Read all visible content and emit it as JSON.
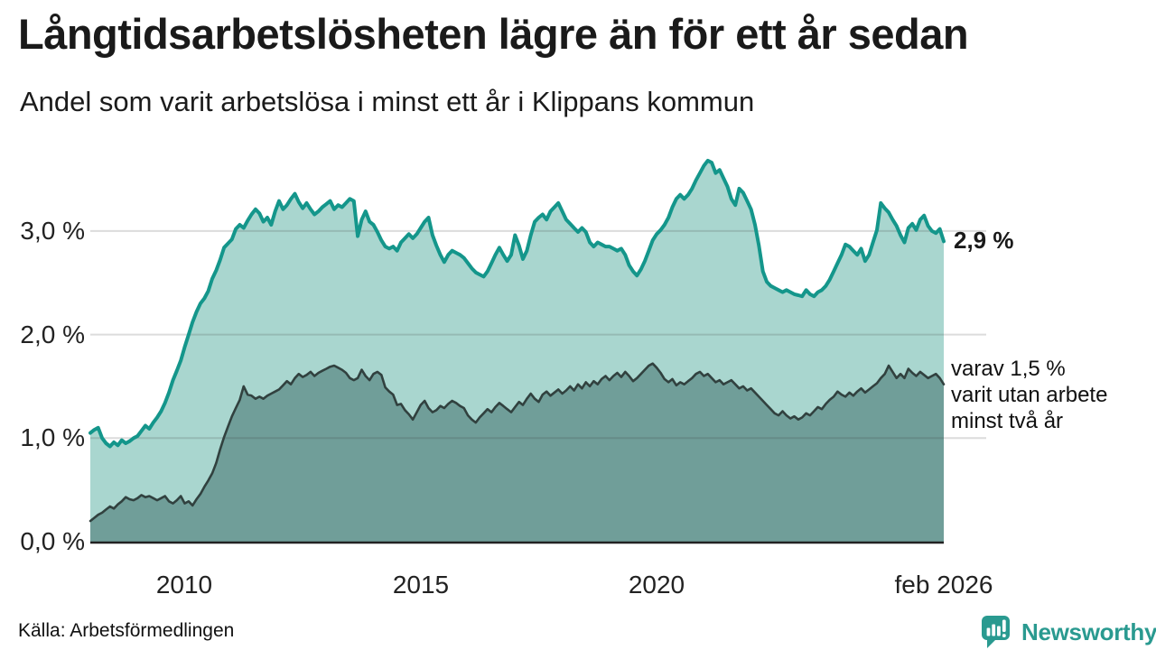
{
  "header": {
    "title": "Långtidsarbetslösheten lägre än för ett år sedan",
    "subtitle": "Andel som varit arbetslösa i minst ett år i Klippans kommun"
  },
  "annotations": {
    "end_value": "2,9 %",
    "varav": "varav 1,5 %\nvarit utan arbete\nminst två år"
  },
  "source": {
    "label": "Källa: Arbetsförmedlingen"
  },
  "logo": {
    "name": "Newsworthy",
    "color": "#2a9a90"
  },
  "chart_data": {
    "type": "area",
    "title": "Långtidsarbetslösheten lägre än för ett år sedan",
    "subtitle": "Andel som varit arbetslösa i minst ett år i Klippans kommun",
    "interval": "monthly",
    "x_start": "2008-01",
    "x_end": "2026-02",
    "ylim": [
      0,
      3.8
    ],
    "grid": true,
    "grid_color": "#3c3c3c",
    "axis_color": "#222222",
    "yticks": [
      {
        "value": 0,
        "label": "0,0 %"
      },
      {
        "value": 1,
        "label": "1,0 %"
      },
      {
        "value": 2,
        "label": "2,0 %"
      },
      {
        "value": 3,
        "label": "3,0 %"
      }
    ],
    "xticks": [
      {
        "label": "2010",
        "month_index": 24
      },
      {
        "label": "2015",
        "month_index": 84
      },
      {
        "label": "2020",
        "month_index": 144
      },
      {
        "label": "feb 2026",
        "month_index": 217
      }
    ],
    "series": [
      {
        "name": "Andel som varit arbetslösa minst ett år",
        "end_label": "2,9 %",
        "color": "#14968b",
        "fill": "#a9d6cf",
        "values": [
          1.05,
          1.08,
          1.1,
          1.0,
          0.95,
          0.92,
          0.96,
          0.93,
          0.98,
          0.95,
          0.97,
          1.0,
          1.02,
          1.07,
          1.12,
          1.09,
          1.15,
          1.2,
          1.26,
          1.34,
          1.44,
          1.56,
          1.65,
          1.75,
          1.88,
          2.0,
          2.12,
          2.22,
          2.3,
          2.35,
          2.42,
          2.54,
          2.62,
          2.72,
          2.84,
          2.88,
          2.92,
          3.02,
          3.06,
          3.03,
          3.1,
          3.16,
          3.21,
          3.17,
          3.09,
          3.13,
          3.06,
          3.19,
          3.29,
          3.21,
          3.25,
          3.31,
          3.36,
          3.28,
          3.22,
          3.27,
          3.21,
          3.16,
          3.19,
          3.23,
          3.26,
          3.29,
          3.21,
          3.25,
          3.23,
          3.27,
          3.31,
          3.29,
          2.95,
          3.11,
          3.19,
          3.09,
          3.06,
          2.99,
          2.91,
          2.85,
          2.83,
          2.85,
          2.81,
          2.89,
          2.93,
          2.97,
          2.93,
          2.97,
          3.03,
          3.09,
          3.13,
          2.96,
          2.86,
          2.77,
          2.7,
          2.77,
          2.81,
          2.79,
          2.77,
          2.74,
          2.69,
          2.64,
          2.6,
          2.58,
          2.56,
          2.61,
          2.69,
          2.77,
          2.84,
          2.77,
          2.71,
          2.77,
          2.96,
          2.86,
          2.73,
          2.81,
          2.96,
          3.09,
          3.13,
          3.16,
          3.11,
          3.19,
          3.23,
          3.27,
          3.19,
          3.11,
          3.07,
          3.03,
          2.99,
          3.03,
          2.99,
          2.89,
          2.85,
          2.89,
          2.87,
          2.85,
          2.85,
          2.83,
          2.81,
          2.83,
          2.77,
          2.67,
          2.61,
          2.57,
          2.63,
          2.71,
          2.81,
          2.91,
          2.97,
          3.01,
          3.06,
          3.13,
          3.23,
          3.31,
          3.35,
          3.31,
          3.35,
          3.41,
          3.49,
          3.56,
          3.63,
          3.68,
          3.66,
          3.56,
          3.59,
          3.51,
          3.43,
          3.31,
          3.25,
          3.41,
          3.37,
          3.29,
          3.21,
          3.06,
          2.86,
          2.61,
          2.51,
          2.47,
          2.45,
          2.43,
          2.41,
          2.43,
          2.41,
          2.39,
          2.38,
          2.37,
          2.43,
          2.39,
          2.37,
          2.41,
          2.43,
          2.47,
          2.53,
          2.61,
          2.69,
          2.77,
          2.87,
          2.85,
          2.81,
          2.77,
          2.83,
          2.71,
          2.77,
          2.89,
          3.01,
          3.27,
          3.22,
          3.18,
          3.11,
          3.05,
          2.96,
          2.89,
          3.03,
          3.07,
          3.01,
          3.11,
          3.15,
          3.05,
          3.0,
          2.98,
          3.02,
          2.9
        ]
      },
      {
        "name": "varav arbetslösa minst två år",
        "end_label": "varav 1,5 % varit utan arbete minst två år",
        "color": "#31413f",
        "fill": "#709e99",
        "values": [
          0.2,
          0.23,
          0.26,
          0.28,
          0.31,
          0.34,
          0.32,
          0.36,
          0.39,
          0.43,
          0.41,
          0.4,
          0.42,
          0.45,
          0.43,
          0.44,
          0.42,
          0.4,
          0.42,
          0.44,
          0.39,
          0.37,
          0.4,
          0.44,
          0.37,
          0.39,
          0.35,
          0.41,
          0.46,
          0.53,
          0.59,
          0.66,
          0.76,
          0.89,
          1.01,
          1.11,
          1.21,
          1.29,
          1.37,
          1.5,
          1.42,
          1.41,
          1.38,
          1.4,
          1.38,
          1.41,
          1.43,
          1.45,
          1.47,
          1.51,
          1.55,
          1.52,
          1.58,
          1.62,
          1.59,
          1.61,
          1.64,
          1.6,
          1.63,
          1.65,
          1.67,
          1.69,
          1.7,
          1.68,
          1.66,
          1.63,
          1.58,
          1.56,
          1.58,
          1.66,
          1.6,
          1.56,
          1.62,
          1.64,
          1.61,
          1.49,
          1.45,
          1.42,
          1.32,
          1.33,
          1.27,
          1.23,
          1.18,
          1.25,
          1.32,
          1.36,
          1.29,
          1.25,
          1.27,
          1.31,
          1.29,
          1.33,
          1.36,
          1.34,
          1.31,
          1.29,
          1.22,
          1.18,
          1.15,
          1.2,
          1.24,
          1.28,
          1.25,
          1.3,
          1.34,
          1.31,
          1.28,
          1.25,
          1.3,
          1.35,
          1.32,
          1.38,
          1.43,
          1.38,
          1.35,
          1.42,
          1.45,
          1.41,
          1.44,
          1.47,
          1.43,
          1.46,
          1.5,
          1.46,
          1.52,
          1.48,
          1.54,
          1.5,
          1.55,
          1.52,
          1.57,
          1.6,
          1.56,
          1.6,
          1.63,
          1.59,
          1.64,
          1.6,
          1.55,
          1.58,
          1.62,
          1.66,
          1.7,
          1.72,
          1.68,
          1.63,
          1.57,
          1.54,
          1.57,
          1.51,
          1.54,
          1.52,
          1.55,
          1.58,
          1.62,
          1.64,
          1.6,
          1.62,
          1.58,
          1.54,
          1.56,
          1.52,
          1.54,
          1.56,
          1.52,
          1.48,
          1.5,
          1.46,
          1.48,
          1.44,
          1.4,
          1.36,
          1.32,
          1.28,
          1.24,
          1.22,
          1.26,
          1.22,
          1.19,
          1.21,
          1.18,
          1.2,
          1.24,
          1.22,
          1.26,
          1.3,
          1.28,
          1.33,
          1.37,
          1.4,
          1.45,
          1.42,
          1.4,
          1.44,
          1.41,
          1.45,
          1.48,
          1.44,
          1.47,
          1.5,
          1.53,
          1.58,
          1.62,
          1.7,
          1.64,
          1.58,
          1.62,
          1.58,
          1.67,
          1.63,
          1.6,
          1.64,
          1.61,
          1.58,
          1.6,
          1.62,
          1.58,
          1.52
        ]
      }
    ]
  }
}
